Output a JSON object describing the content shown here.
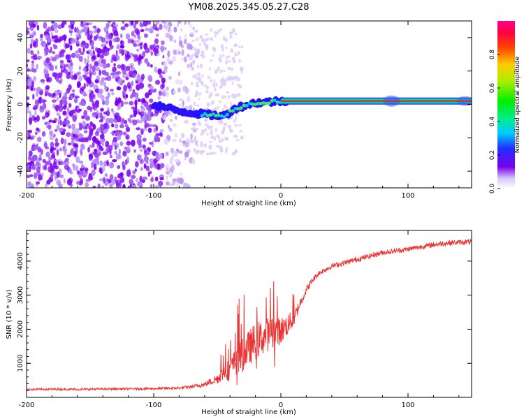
{
  "title": "YM08.2025.345.05.27.C28",
  "chart_data": [
    {
      "type": "heatmap",
      "title": "YM08.2025.345.05.27.C28",
      "xlabel": "Height of straight line (km)",
      "ylabel": "Frequency (Hz)",
      "xlim": [
        -200,
        150
      ],
      "ylim": [
        -50,
        50
      ],
      "xticks": [
        -200,
        -100,
        0,
        100
      ],
      "yticks": [
        -40,
        -20,
        0,
        20,
        40
      ],
      "colorbar": {
        "label": "Normalized spectral amplitude",
        "range": [
          0,
          1
        ],
        "ticks": [
          "0.0",
          "0.2",
          "0.4",
          "0.6",
          "0.8"
        ]
      },
      "features": {
        "noise_region_x": [
          -200,
          -65
        ],
        "transition_region_x": [
          -100,
          0
        ],
        "signal_line": [
          {
            "x": -100,
            "freq": 0
          },
          {
            "x": -80,
            "freq": -4
          },
          {
            "x": -60,
            "freq": -6
          },
          {
            "x": -45,
            "freq": -7
          },
          {
            "x": -35,
            "freq": -2
          },
          {
            "x": -20,
            "freq": 1
          },
          {
            "x": 0,
            "freq": 2
          },
          {
            "x": 150,
            "freq": 2
          }
        ],
        "steady_line_freq": 2,
        "steady_line_start_x": 0
      }
    },
    {
      "type": "line",
      "xlabel": "Height of straight line (km)",
      "ylabel": "SNR (10 * v/v)",
      "xlim": [
        -200,
        150
      ],
      "ylim": [
        0,
        4900
      ],
      "xticks": [
        -200,
        -100,
        0,
        100
      ],
      "yticks": [
        1000,
        2000,
        3000,
        4000
      ],
      "series": [
        {
          "name": "SNR",
          "color": "#ee3333",
          "x": [
            -200,
            -180,
            -160,
            -140,
            -120,
            -100,
            -80,
            -70,
            -60,
            -50,
            -40,
            -30,
            -20,
            -10,
            0,
            10,
            15,
            20,
            25,
            30,
            40,
            50,
            60,
            70,
            80,
            90,
            100,
            110,
            120,
            130,
            140,
            150
          ],
          "y": [
            230,
            240,
            235,
            245,
            250,
            255,
            275,
            310,
            380,
            550,
            850,
            1250,
            1650,
            1850,
            1950,
            2300,
            2750,
            3150,
            3450,
            3650,
            3850,
            3950,
            4050,
            4150,
            4250,
            4300,
            4350,
            4420,
            4480,
            4530,
            4550,
            4570
          ],
          "noise_amplitude": [
            60,
            60,
            60,
            60,
            60,
            60,
            80,
            100,
            140,
            300,
            650,
            1000,
            1100,
            1000,
            800,
            500,
            300,
            220,
            180,
            160,
            150,
            150,
            150,
            150,
            150,
            150,
            150,
            150,
            150,
            150,
            150,
            150
          ]
        }
      ]
    }
  ]
}
